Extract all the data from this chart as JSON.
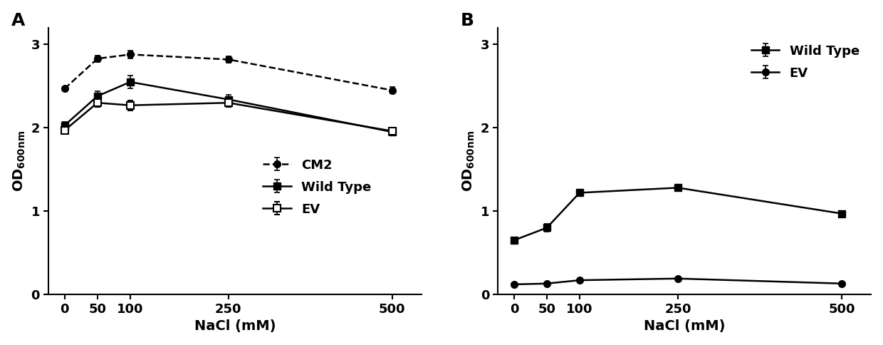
{
  "x": [
    0,
    50,
    100,
    250,
    500
  ],
  "panel_A": {
    "CM2": {
      "y": [
        2.47,
        2.83,
        2.88,
        2.82,
        2.45
      ],
      "yerr": [
        0.02,
        0.04,
        0.05,
        0.04,
        0.04
      ]
    },
    "Wild Type": {
      "y": [
        2.03,
        2.38,
        2.55,
        2.34,
        1.95
      ],
      "yerr": [
        0.04,
        0.06,
        0.08,
        0.06,
        0.04
      ]
    },
    "EV": {
      "y": [
        1.97,
        2.3,
        2.27,
        2.3,
        1.96
      ],
      "yerr": [
        0.04,
        0.05,
        0.06,
        0.05,
        0.04
      ]
    }
  },
  "panel_B": {
    "Wild Type": {
      "y": [
        0.65,
        0.8,
        1.22,
        1.28,
        0.97
      ],
      "yerr": [
        0.02,
        0.05,
        0.04,
        0.03,
        0.03
      ]
    },
    "EV": {
      "y": [
        0.12,
        0.13,
        0.17,
        0.19,
        0.13
      ],
      "yerr": [
        0.01,
        0.01,
        0.01,
        0.01,
        0.01
      ]
    }
  },
  "xlabel": "NaCl (mM)",
  "ylim_A": [
    0,
    3.2
  ],
  "ylim_B": [
    0,
    3.2
  ],
  "yticks": [
    0,
    1,
    2,
    3
  ],
  "panel_label_A": "A",
  "panel_label_B": "B",
  "line_color": "#000000",
  "marker_size": 7,
  "line_width": 1.8,
  "capsize": 3,
  "elinewidth": 1.2,
  "tick_fontsize": 13,
  "label_fontsize": 14,
  "legend_fontsize": 13,
  "panel_label_fontsize": 18
}
